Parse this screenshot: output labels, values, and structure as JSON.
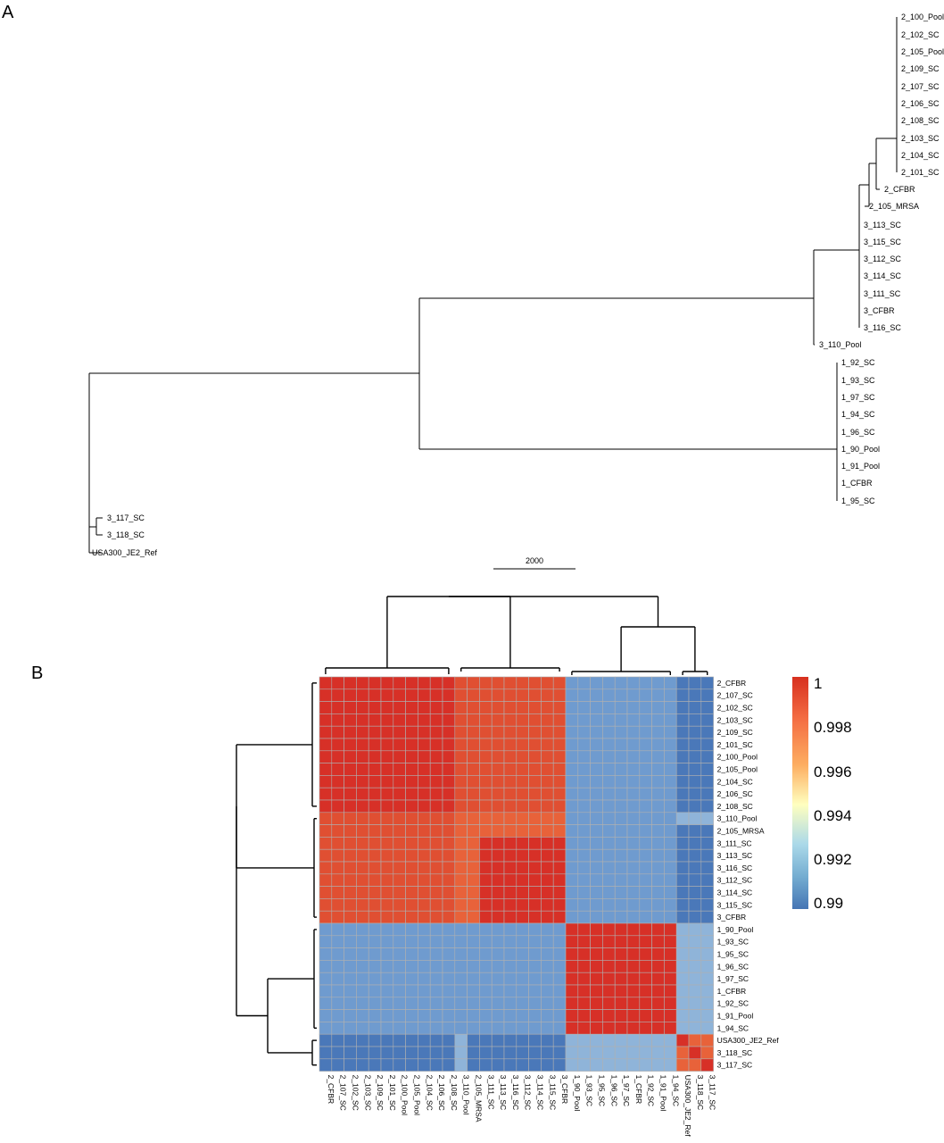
{
  "panelA": {
    "letter": "A",
    "scale_bar_label": "2000",
    "tips": [
      "2_100_Pool",
      "2_102_SC",
      "2_105_Pool",
      "2_109_SC",
      "2_107_SC",
      "2_106_SC",
      "2_108_SC",
      "2_103_SC",
      "2_104_SC",
      "2_101_SC",
      "2_CFBR",
      "2_105_MRSA",
      "3_113_SC",
      "3_115_SC",
      "3_112_SC",
      "3_114_SC",
      "3_111_SC",
      "3_CFBR",
      "3_116_SC",
      "3_110_Pool",
      "1_92_SC",
      "1_93_SC",
      "1_97_SC",
      "1_94_SC",
      "1_96_SC",
      "1_90_Pool",
      "1_91_Pool",
      "1_CFBR",
      "1_95_SC",
      "3_117_SC",
      "3_118_SC",
      "USA300_JE2_Ref"
    ]
  },
  "panelB": {
    "letter": "B",
    "row_labels": [
      "2_CFBR",
      "2_107_SC",
      "2_102_SC",
      "2_103_SC",
      "2_109_SC",
      "2_101_SC",
      "2_100_Pool",
      "2_105_Pool",
      "2_104_SC",
      "2_106_SC",
      "2_108_SC",
      "3_110_Pool",
      "2_105_MRSA",
      "3_111_SC",
      "3_113_SC",
      "3_116_SC",
      "3_112_SC",
      "3_114_SC",
      "3_115_SC",
      "3_CFBR",
      "1_90_Pool",
      "1_93_SC",
      "1_95_SC",
      "1_96_SC",
      "1_97_SC",
      "1_CFBR",
      "1_92_SC",
      "1_91_Pool",
      "1_94_SC",
      "USA300_JE2_Ref",
      "3_118_SC",
      "3_117_SC"
    ],
    "col_labels": [
      "2_CFBR",
      "2_107_SC",
      "2_102_SC",
      "2_103_SC",
      "2_109_SC",
      "2_101_SC",
      "2_100_Pool",
      "2_105_Pool",
      "2_104_SC",
      "2_106_SC",
      "2_108_SC",
      "3_110_Pool",
      "2_105_MRSA",
      "3_111_SC",
      "3_113_SC",
      "3_116_SC",
      "3_112_SC",
      "3_114_SC",
      "3_115_SC",
      "3_CFBR",
      "1_90_Pool",
      "1_93_SC",
      "1_95_SC",
      "1_96_SC",
      "1_97_SC",
      "1_CFBR",
      "1_92_SC",
      "1_91_Pool",
      "1_94_SC",
      "USA300_JE2_Ref",
      "3_118_SC",
      "3_117_SC"
    ],
    "colorbar": {
      "ticks": [
        "1",
        "0.998",
        "0.996",
        "0.994",
        "0.992",
        "0.99"
      ],
      "colors": [
        "#d7301f",
        "#f46d43",
        "#fdae61",
        "#ffffbf",
        "#abd9e9",
        "#74add1",
        "#4575b4"
      ]
    },
    "colors": {
      "red": "#d73027",
      "red_orange": "#e04f32",
      "orange_red": "#e8623a",
      "light_blue": "#8fb4d9",
      "blue": "#6f9bcf",
      "dark_blue": "#4a78b9",
      "grid": "#b0b0b0"
    }
  }
}
